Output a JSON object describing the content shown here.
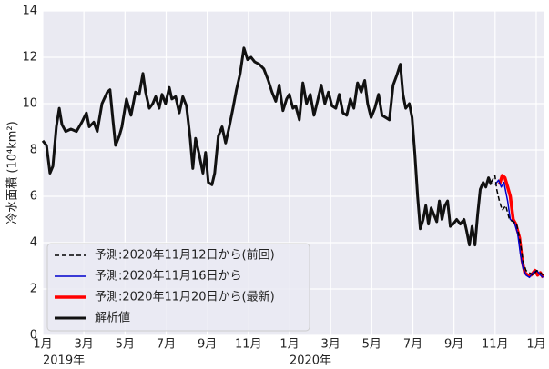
{
  "chart_data": {
    "type": "line",
    "ylabel": "冷水面積 (10⁴km²)",
    "xlim": [
      0,
      24.4
    ],
    "ylim": [
      0,
      14
    ],
    "yticks": [
      0,
      2,
      4,
      6,
      8,
      10,
      12,
      14
    ],
    "xticks": [
      {
        "value": 0,
        "label": "1月"
      },
      {
        "value": 2,
        "label": "3月"
      },
      {
        "value": 4,
        "label": "5月"
      },
      {
        "value": 6,
        "label": "7月"
      },
      {
        "value": 8,
        "label": "9月"
      },
      {
        "value": 10,
        "label": "11月"
      },
      {
        "value": 12,
        "label": "1月"
      },
      {
        "value": 14,
        "label": "3月"
      },
      {
        "value": 16,
        "label": "5月"
      },
      {
        "value": 18,
        "label": "7月"
      },
      {
        "value": 20,
        "label": "9月"
      },
      {
        "value": 22,
        "label": "11月"
      },
      {
        "value": 24,
        "label": "1月"
      }
    ],
    "year_labels": [
      {
        "value": 0,
        "label": "2019年"
      },
      {
        "value": 12,
        "label": "2020年"
      }
    ],
    "grid": true,
    "legend": "lower left",
    "series": [
      {
        "name": "予測:2020年11月12日から(前回)",
        "color": "#000000",
        "linestyle": "dashed",
        "linewidth": 1.5,
        "x": [
          21.81,
          21.99,
          22.08,
          22.21,
          22.35,
          22.52,
          22.7,
          22.88,
          23.05,
          23.23,
          23.36,
          23.5,
          23.67,
          23.85,
          24.03,
          24.2,
          24.34
        ],
        "values": [
          6.6,
          6.9,
          6.3,
          5.8,
          5.4,
          5.6,
          5.0,
          4.9,
          4.8,
          4.0,
          3.2,
          2.8,
          2.7,
          2.6,
          2.8,
          2.7,
          2.6
        ]
      },
      {
        "name": "予測:2020年11月16日から",
        "color": "#0000cc",
        "linestyle": "solid",
        "linewidth": 1.5,
        "x": [
          21.99,
          22.17,
          22.3,
          22.43,
          22.61,
          22.74,
          22.92,
          23.1,
          23.23,
          23.36,
          23.5,
          23.67,
          23.85,
          24.03,
          24.2,
          24.34
        ],
        "values": [
          6.5,
          6.7,
          6.4,
          6.6,
          5.8,
          5.0,
          4.9,
          4.4,
          3.5,
          2.9,
          2.6,
          2.5,
          2.7,
          2.8,
          2.6,
          2.5
        ]
      },
      {
        "name": "予測:2020年11月20日から(最新)",
        "color": "#ff0000",
        "linestyle": "solid",
        "linewidth": 3.5,
        "x": [
          22.21,
          22.35,
          22.48,
          22.61,
          22.74,
          22.88,
          23.01,
          23.19,
          23.32,
          23.45,
          23.58,
          23.76,
          23.94,
          24.07,
          24.2,
          24.34
        ],
        "values": [
          6.5,
          6.9,
          6.8,
          6.4,
          6.0,
          5.0,
          4.8,
          4.2,
          3.2,
          2.7,
          2.6,
          2.6,
          2.8,
          2.6,
          2.7,
          2.5
        ]
      },
      {
        "name": "解析値",
        "color": "#111111",
        "linestyle": "solid",
        "linewidth": 3,
        "x": [
          0,
          0.18,
          0.35,
          0.49,
          0.66,
          0.8,
          0.93,
          1.11,
          1.37,
          1.64,
          1.9,
          2.12,
          2.26,
          2.48,
          2.65,
          2.88,
          3.14,
          3.27,
          3.41,
          3.54,
          3.72,
          3.85,
          4.07,
          4.29,
          4.51,
          4.69,
          4.87,
          5.0,
          5.18,
          5.35,
          5.49,
          5.66,
          5.8,
          5.97,
          6.15,
          6.28,
          6.46,
          6.64,
          6.81,
          6.99,
          7.17,
          7.3,
          7.43,
          7.61,
          7.79,
          7.92,
          8.05,
          8.23,
          8.36,
          8.54,
          8.72,
          8.89,
          9.07,
          9.25,
          9.42,
          9.6,
          9.78,
          9.96,
          10.13,
          10.31,
          10.53,
          10.75,
          10.97,
          11.15,
          11.33,
          11.5,
          11.68,
          11.86,
          11.99,
          12.17,
          12.3,
          12.48,
          12.65,
          12.83,
          13.01,
          13.19,
          13.36,
          13.54,
          13.72,
          13.89,
          14.07,
          14.25,
          14.42,
          14.6,
          14.78,
          14.96,
          15.13,
          15.31,
          15.49,
          15.66,
          15.8,
          15.97,
          16.15,
          16.33,
          16.5,
          16.68,
          16.86,
          17.04,
          17.21,
          17.39,
          17.52,
          17.65,
          17.83,
          17.96,
          18.1,
          18.23,
          18.36,
          18.5,
          18.63,
          18.76,
          18.89,
          19.03,
          19.16,
          19.29,
          19.42,
          19.56,
          19.69,
          19.82,
          19.96,
          20.13,
          20.31,
          20.49,
          20.62,
          20.75,
          20.88,
          21.02,
          21.15,
          21.28,
          21.42,
          21.55,
          21.68,
          21.81
        ],
        "values": [
          8.4,
          8.2,
          7.0,
          7.3,
          9.0,
          9.8,
          9.1,
          8.8,
          8.9,
          8.8,
          9.2,
          9.6,
          9.0,
          9.2,
          8.8,
          10.0,
          10.5,
          10.6,
          9.3,
          8.2,
          8.6,
          9.0,
          10.2,
          9.5,
          10.5,
          10.4,
          11.3,
          10.5,
          9.8,
          10.0,
          10.3,
          9.8,
          10.4,
          10.0,
          10.7,
          10.2,
          10.3,
          9.6,
          10.3,
          9.9,
          8.5,
          7.2,
          8.5,
          7.8,
          7.0,
          7.9,
          6.6,
          6.5,
          7.0,
          8.6,
          9.0,
          8.3,
          9.0,
          9.8,
          10.6,
          11.3,
          12.4,
          11.9,
          12.0,
          11.8,
          11.7,
          11.5,
          11.0,
          10.5,
          10.1,
          10.8,
          9.7,
          10.2,
          10.4,
          9.8,
          9.9,
          9.3,
          10.9,
          10.0,
          10.4,
          9.5,
          10.1,
          10.8,
          10.0,
          10.5,
          9.9,
          9.8,
          10.4,
          9.6,
          9.5,
          10.2,
          9.8,
          10.9,
          10.5,
          11.0,
          10.0,
          9.4,
          9.8,
          10.4,
          9.5,
          9.4,
          9.3,
          10.8,
          11.2,
          11.7,
          10.4,
          9.8,
          10.0,
          9.4,
          7.8,
          6.0,
          4.6,
          5.0,
          5.6,
          4.8,
          5.5,
          5.2,
          4.9,
          5.8,
          5.0,
          5.6,
          5.8,
          4.7,
          4.8,
          5.0,
          4.8,
          5.0,
          4.5,
          3.9,
          4.7,
          3.9,
          5.2,
          6.3,
          6.6,
          6.4,
          6.8,
          6.5
        ]
      }
    ]
  }
}
